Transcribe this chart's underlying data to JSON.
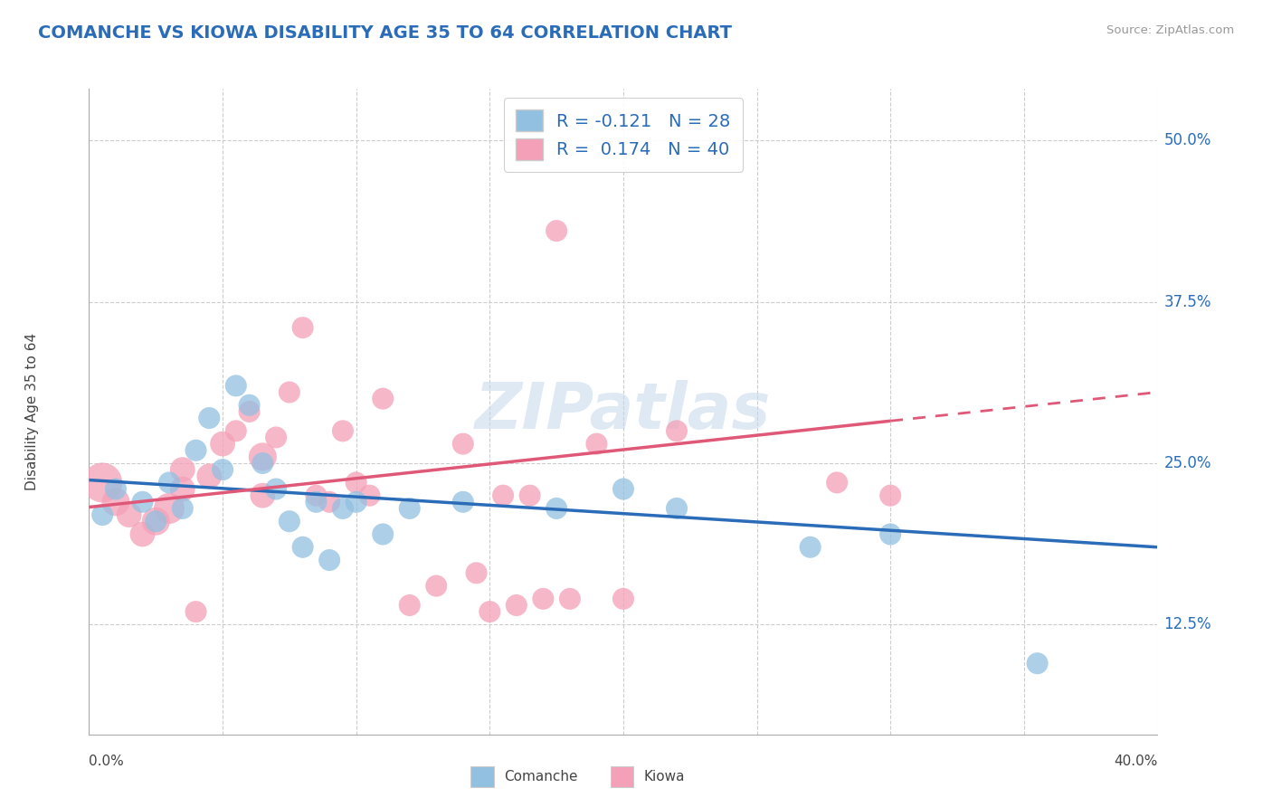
{
  "title": "COMANCHE VS KIOWA DISABILITY AGE 35 TO 64 CORRELATION CHART",
  "source": "Source: ZipAtlas.com",
  "ylabel": "Disability Age 35 to 64",
  "xmin": 0.0,
  "xmax": 0.4,
  "ymin": 0.04,
  "ymax": 0.54,
  "yticks": [
    0.125,
    0.25,
    0.375,
    0.5
  ],
  "ytick_labels": [
    "12.5%",
    "25.0%",
    "37.5%",
    "50.0%"
  ],
  "xtick_left_label": "0.0%",
  "xtick_right_label": "40.0%",
  "r_comanche": -0.121,
  "n_comanche": 28,
  "r_kiowa": 0.174,
  "n_kiowa": 40,
  "color_comanche": "#92c0e0",
  "color_kiowa": "#f4a0b8",
  "line_color_comanche": "#2b6cb8",
  "line_color_kiowa": "#e05878",
  "watermark_color": "#c5d8ea",
  "comanche_x": [
    0.005,
    0.01,
    0.02,
    0.025,
    0.03,
    0.035,
    0.04,
    0.045,
    0.05,
    0.055,
    0.06,
    0.065,
    0.07,
    0.075,
    0.08,
    0.085,
    0.09,
    0.095,
    0.1,
    0.11,
    0.12,
    0.14,
    0.175,
    0.2,
    0.22,
    0.27,
    0.3,
    0.355
  ],
  "comanche_y": [
    0.21,
    0.23,
    0.22,
    0.205,
    0.235,
    0.215,
    0.26,
    0.285,
    0.245,
    0.31,
    0.295,
    0.25,
    0.23,
    0.205,
    0.185,
    0.22,
    0.175,
    0.215,
    0.22,
    0.195,
    0.215,
    0.22,
    0.215,
    0.23,
    0.215,
    0.185,
    0.195,
    0.095
  ],
  "comanche_size": [
    30,
    30,
    30,
    30,
    30,
    30,
    30,
    30,
    30,
    30,
    30,
    30,
    30,
    30,
    30,
    30,
    30,
    30,
    30,
    30,
    30,
    30,
    30,
    30,
    30,
    30,
    30,
    30
  ],
  "kiowa_x": [
    0.005,
    0.01,
    0.015,
    0.02,
    0.025,
    0.03,
    0.035,
    0.035,
    0.04,
    0.045,
    0.05,
    0.055,
    0.06,
    0.065,
    0.065,
    0.07,
    0.075,
    0.08,
    0.085,
    0.09,
    0.095,
    0.1,
    0.105,
    0.11,
    0.12,
    0.13,
    0.14,
    0.145,
    0.15,
    0.155,
    0.16,
    0.165,
    0.17,
    0.175,
    0.18,
    0.19,
    0.2,
    0.22,
    0.28,
    0.3
  ],
  "kiowa_y": [
    0.235,
    0.22,
    0.21,
    0.195,
    0.205,
    0.215,
    0.23,
    0.245,
    0.135,
    0.24,
    0.265,
    0.275,
    0.29,
    0.255,
    0.225,
    0.27,
    0.305,
    0.355,
    0.225,
    0.22,
    0.275,
    0.235,
    0.225,
    0.3,
    0.14,
    0.155,
    0.265,
    0.165,
    0.135,
    0.225,
    0.14,
    0.225,
    0.145,
    0.43,
    0.145,
    0.265,
    0.145,
    0.275,
    0.235,
    0.225
  ],
  "kiowa_size": [
    100,
    50,
    40,
    40,
    50,
    60,
    40,
    40,
    30,
    40,
    40,
    30,
    30,
    50,
    40,
    30,
    30,
    30,
    30,
    30,
    30,
    30,
    30,
    30,
    30,
    30,
    30,
    30,
    30,
    30,
    30,
    30,
    30,
    30,
    30,
    30,
    30,
    30,
    30,
    30
  ],
  "trend_comanche_x0": 0.0,
  "trend_comanche_y0": 0.237,
  "trend_comanche_x1": 0.4,
  "trend_comanche_y1": 0.185,
  "trend_kiowa_x0": 0.0,
  "trend_kiowa_y0": 0.216,
  "trend_kiowa_x1": 0.4,
  "trend_kiowa_y1": 0.305,
  "trend_kiowa_solid_end": 0.3
}
